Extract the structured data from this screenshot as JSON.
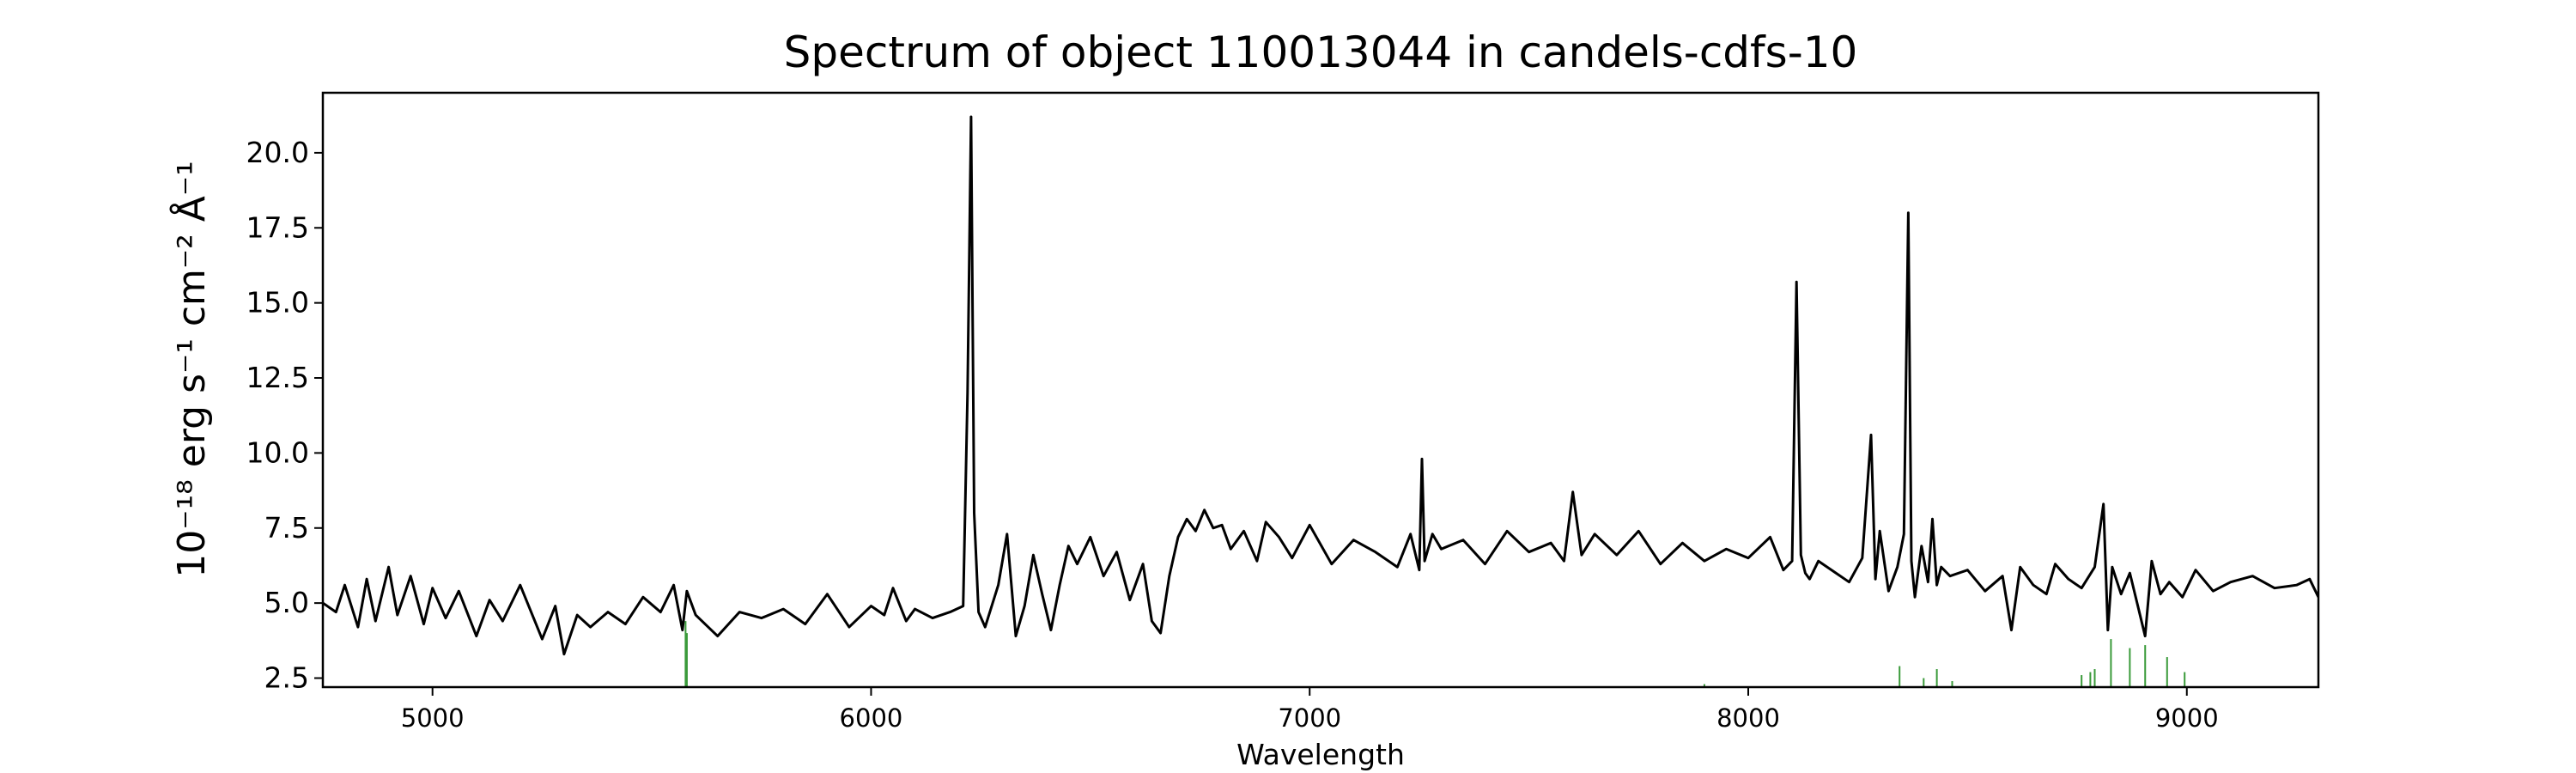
{
  "chart_data": {
    "type": "line",
    "title": "Spectrum of object 110013044 in candels-cdfs-10",
    "xlabel": "Wavelength",
    "ylabel": "10⁻¹⁸ erg s⁻¹ cm⁻² Å⁻¹",
    "xlim": [
      4750,
      9300
    ],
    "ylim": [
      2.2,
      22.0
    ],
    "xticks": [
      5000,
      6000,
      7000,
      8000,
      9000
    ],
    "xtick_labels": [
      "5000",
      "6000",
      "7000",
      "8000",
      "9000"
    ],
    "yticks": [
      2.5,
      5.0,
      7.5,
      10.0,
      12.5,
      15.0,
      17.5,
      20.0
    ],
    "ytick_labels": [
      "2.5",
      "5.0",
      "7.5",
      "10.0",
      "12.5",
      "15.0",
      "17.5",
      "20.0"
    ],
    "grid": false,
    "legend": "none",
    "series": [
      {
        "color": "#000000",
        "x": [
          4750,
          4780,
          4800,
          4830,
          4850,
          4870,
          4900,
          4920,
          4950,
          4980,
          5000,
          5030,
          5060,
          5100,
          5130,
          5160,
          5200,
          5250,
          5280,
          5300,
          5330,
          5360,
          5400,
          5440,
          5480,
          5520,
          5550,
          5570,
          5580,
          5600,
          5650,
          5700,
          5750,
          5800,
          5850,
          5900,
          5950,
          6000,
          6030,
          6050,
          6080,
          6100,
          6140,
          6180,
          6210,
          6220,
          6228,
          6235,
          6245,
          6260,
          6290,
          6310,
          6330,
          6350,
          6370,
          6390,
          6410,
          6430,
          6450,
          6470,
          6500,
          6530,
          6560,
          6590,
          6620,
          6640,
          6660,
          6680,
          6700,
          6720,
          6740,
          6760,
          6780,
          6800,
          6820,
          6850,
          6880,
          6900,
          6930,
          6960,
          7000,
          7050,
          7100,
          7150,
          7200,
          7230,
          7250,
          7256,
          7262,
          7280,
          7300,
          7350,
          7400,
          7450,
          7500,
          7550,
          7580,
          7600,
          7620,
          7650,
          7700,
          7750,
          7800,
          7850,
          7900,
          7950,
          8000,
          8050,
          8080,
          8100,
          8110,
          8120,
          8130,
          8140,
          8160,
          8200,
          8230,
          8260,
          8280,
          8290,
          8300,
          8320,
          8340,
          8355,
          8365,
          8372,
          8380,
          8395,
          8410,
          8420,
          8430,
          8440,
          8460,
          8500,
          8540,
          8580,
          8600,
          8620,
          8650,
          8680,
          8700,
          8730,
          8760,
          8790,
          8810,
          8820,
          8830,
          8850,
          8870,
          8890,
          8905,
          8920,
          8940,
          8960,
          8990,
          9020,
          9060,
          9100,
          9150,
          9200,
          9250,
          9280,
          9300
        ],
        "y": [
          5.0,
          4.7,
          5.6,
          4.2,
          5.8,
          4.4,
          6.2,
          4.6,
          5.9,
          4.3,
          5.5,
          4.5,
          5.4,
          3.9,
          5.1,
          4.4,
          5.6,
          3.8,
          4.9,
          3.3,
          4.6,
          4.2,
          4.7,
          4.3,
          5.2,
          4.7,
          5.6,
          4.1,
          5.4,
          4.6,
          3.9,
          4.7,
          4.5,
          4.8,
          4.3,
          5.3,
          4.2,
          4.9,
          4.6,
          5.5,
          4.4,
          4.8,
          4.5,
          4.7,
          4.9,
          12.0,
          21.2,
          8.0,
          4.7,
          4.2,
          5.6,
          7.3,
          3.9,
          4.9,
          6.6,
          5.3,
          4.1,
          5.6,
          6.9,
          6.3,
          7.2,
          5.9,
          6.7,
          5.1,
          6.3,
          4.4,
          4.0,
          5.9,
          7.2,
          7.8,
          7.4,
          8.1,
          7.5,
          7.6,
          6.8,
          7.4,
          6.4,
          7.7,
          7.2,
          6.5,
          7.6,
          6.3,
          7.1,
          6.7,
          6.2,
          7.3,
          6.1,
          9.8,
          6.4,
          7.3,
          6.8,
          7.1,
          6.3,
          7.4,
          6.7,
          7.0,
          6.4,
          8.7,
          6.6,
          7.3,
          6.6,
          7.4,
          6.3,
          7.0,
          6.4,
          6.8,
          6.5,
          7.2,
          6.1,
          6.4,
          15.7,
          6.6,
          6.0,
          5.8,
          6.4,
          6.0,
          5.7,
          6.5,
          10.6,
          5.8,
          7.4,
          5.4,
          6.2,
          7.3,
          18.0,
          6.4,
          5.2,
          6.9,
          5.7,
          7.8,
          5.6,
          6.2,
          5.9,
          6.1,
          5.4,
          5.9,
          4.1,
          6.2,
          5.6,
          5.3,
          6.3,
          5.8,
          5.5,
          6.2,
          8.3,
          4.1,
          6.2,
          5.3,
          6.0,
          4.8,
          3.9,
          6.4,
          5.3,
          5.7,
          5.2,
          6.1,
          5.4,
          5.7,
          5.9,
          5.5,
          5.6,
          5.8,
          5.2
        ]
      },
      {
        "color": "#3a9a3a",
        "x": [
          5577,
          5578,
          5580,
          7900,
          8345,
          8400,
          8430,
          8465,
          8760,
          8780,
          8790,
          8827,
          8870,
          8905,
          8955,
          8995
        ],
        "y": [
          4.4,
          3.6,
          4.0,
          2.3,
          2.9,
          2.5,
          2.8,
          2.4,
          2.6,
          2.7,
          2.8,
          3.8,
          3.5,
          3.6,
          3.2,
          2.7
        ]
      }
    ]
  }
}
